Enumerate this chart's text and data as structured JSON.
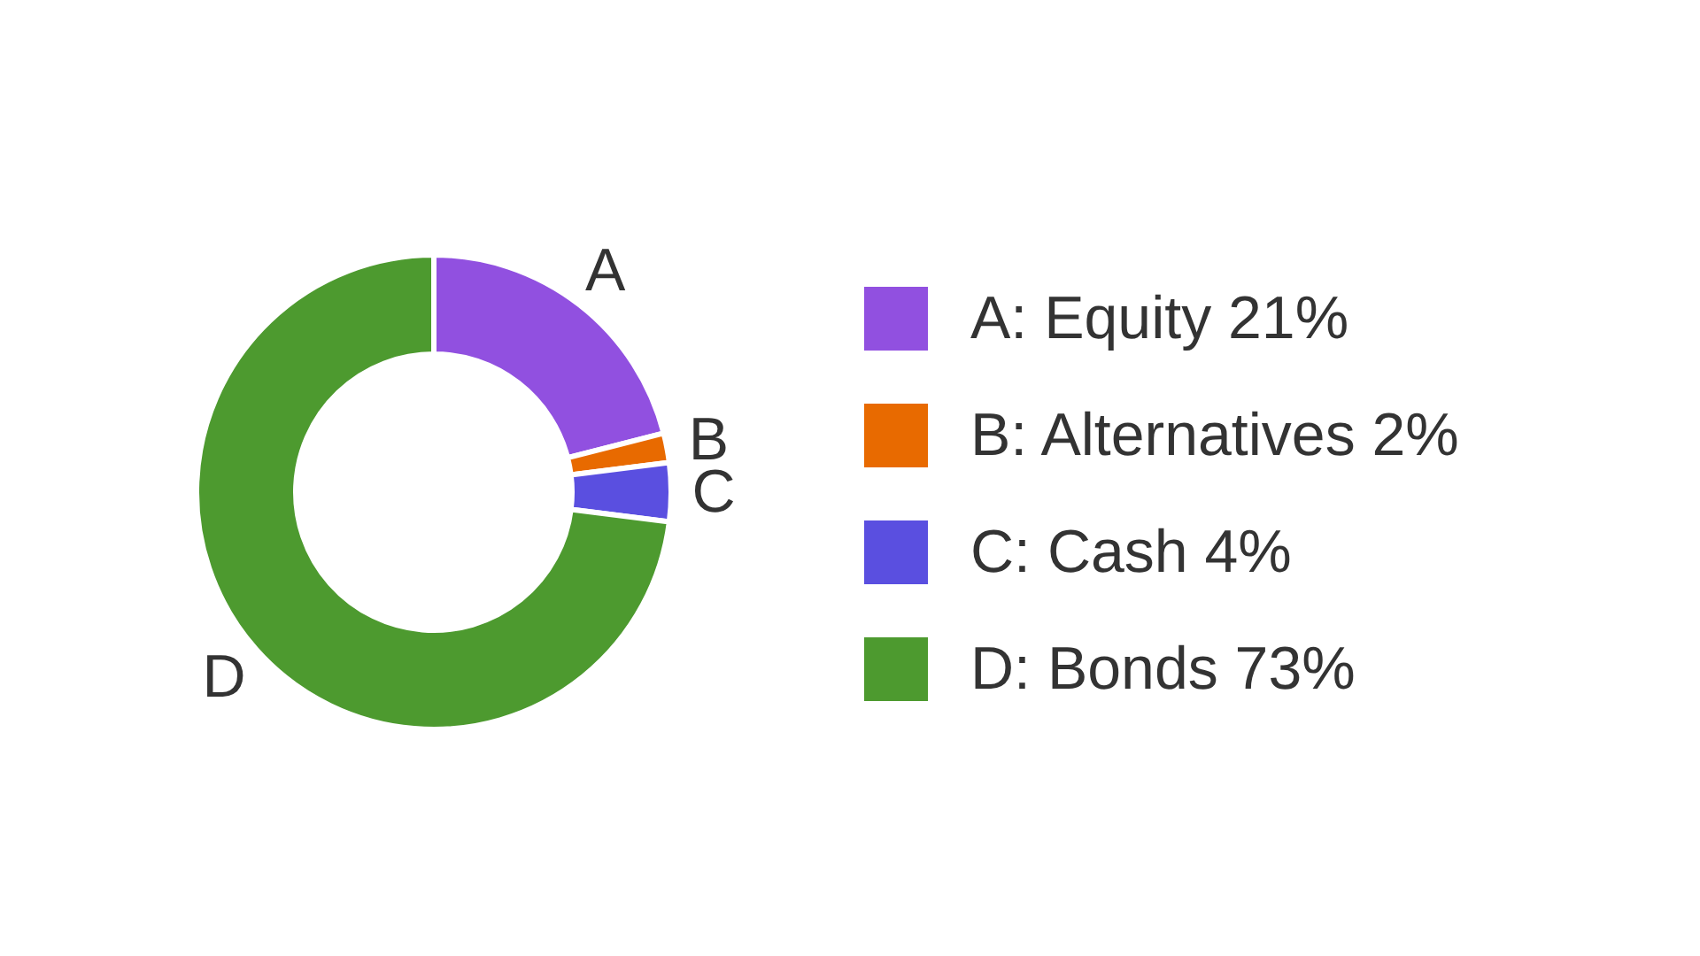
{
  "chart_data": {
    "type": "donut",
    "categories": [
      "A: Equity",
      "B: Alternatives",
      "C: Cash",
      "D: Bonds"
    ],
    "values": [
      21,
      2,
      4,
      73
    ],
    "value_labels": [
      "21%",
      "2%",
      "4%",
      "73%"
    ],
    "colors": [
      "#9150e0",
      "#e86a00",
      "#5a4fe0",
      "#4d9a2f"
    ],
    "legend": "right",
    "annotations": [
      {
        "text": "A",
        "x": "A: Equity"
      },
      {
        "text": "B",
        "x": "B: Alternatives"
      },
      {
        "text": "C",
        "x": "C: Cash"
      },
      {
        "text": "D",
        "x": "D: Bonds"
      }
    ]
  }
}
